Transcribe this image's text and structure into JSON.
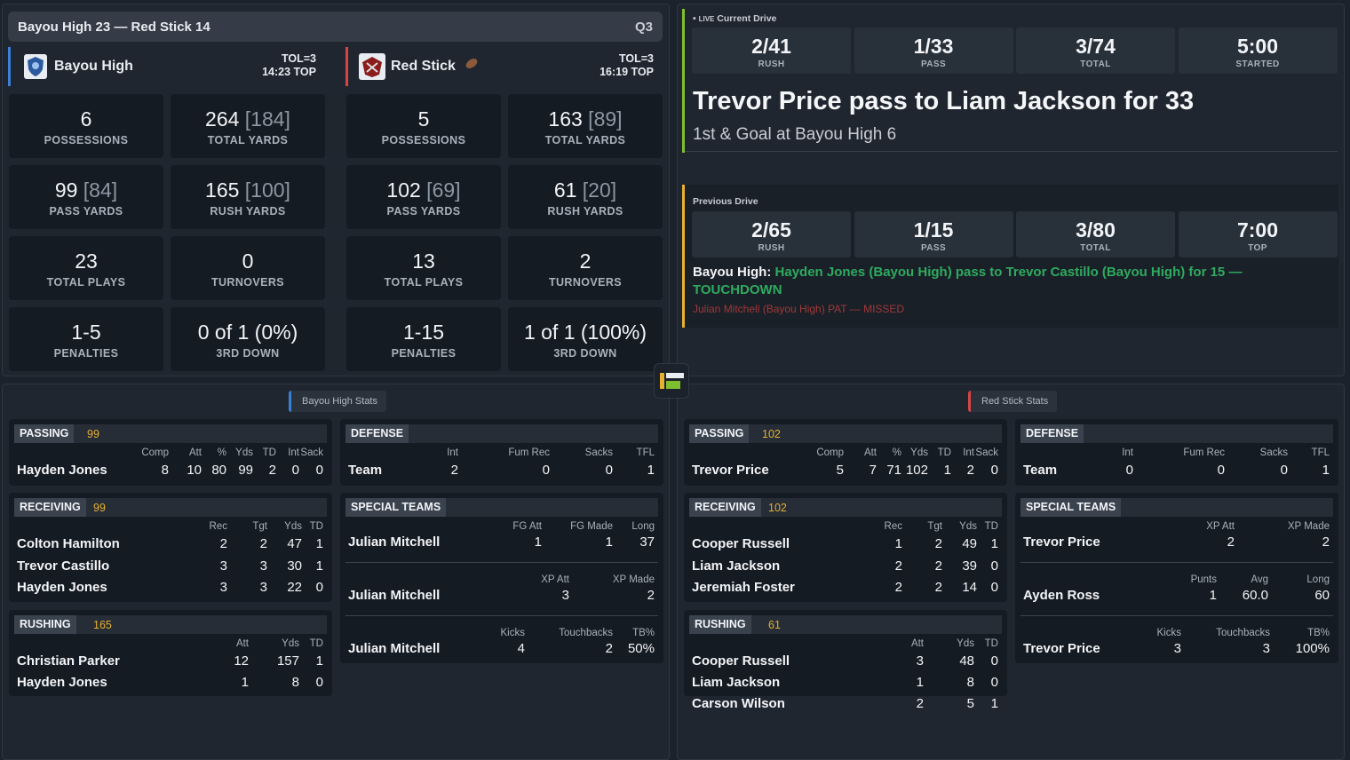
{
  "scorebar": {
    "title": "Bayou High 23 — Red Stick 14",
    "quarter": "Q3"
  },
  "colors": {
    "home": "#3c7fd8",
    "away": "#d64545",
    "gold": "#e6b030",
    "green": "#2eab5f",
    "live": "#7ebf2f"
  },
  "home": {
    "name": "Bayou High",
    "tol": "TOL=3",
    "top": "14:23 TOP",
    "stats": [
      {
        "v": "6",
        "sub": "",
        "l": "POSSESSIONS"
      },
      {
        "v": "264",
        "sub": " [184]",
        "l": "TOTAL YARDS"
      },
      {
        "v": "99",
        "sub": " [84]",
        "l": "PASS YARDS"
      },
      {
        "v": "165",
        "sub": " [100]",
        "l": "RUSH YARDS"
      },
      {
        "v": "23",
        "sub": "",
        "l": "TOTAL PLAYS"
      },
      {
        "v": "0",
        "sub": "",
        "l": "TURNOVERS"
      },
      {
        "v": "1-5",
        "sub": "",
        "l": "PENALTIES"
      },
      {
        "v": "0 of 1 (0%)",
        "sub": "",
        "l": "3RD DOWN"
      }
    ]
  },
  "away": {
    "name": "Red Stick",
    "tol": "TOL=3",
    "top": "16:19 TOP",
    "stats": [
      {
        "v": "5",
        "sub": "",
        "l": "POSSESSIONS"
      },
      {
        "v": "163",
        "sub": " [89]",
        "l": "TOTAL YARDS"
      },
      {
        "v": "102",
        "sub": " [69]",
        "l": "PASS YARDS"
      },
      {
        "v": "61",
        "sub": " [20]",
        "l": "RUSH YARDS"
      },
      {
        "v": "13",
        "sub": "",
        "l": "TOTAL PLAYS"
      },
      {
        "v": "2",
        "sub": "",
        "l": "TURNOVERS"
      },
      {
        "v": "1-15",
        "sub": "",
        "l": "PENALTIES"
      },
      {
        "v": "1 of 1 (100%)",
        "sub": "",
        "l": "3RD DOWN"
      }
    ]
  },
  "current": {
    "live": "LIVE",
    "label": "Current Drive",
    "tiles": [
      {
        "v": "2/41",
        "l": "RUSH"
      },
      {
        "v": "1/33",
        "l": "PASS"
      },
      {
        "v": "3/74",
        "l": "TOTAL"
      },
      {
        "v": "5:00",
        "l": "STARTED"
      }
    ],
    "play": "Trevor Price pass to Liam Jackson for 33",
    "down": "1st & Goal at Bayou High 6"
  },
  "previous": {
    "label": "Previous Drive",
    "tiles": [
      {
        "v": "2/65",
        "l": "RUSH"
      },
      {
        "v": "1/15",
        "l": "PASS"
      },
      {
        "v": "3/80",
        "l": "TOTAL"
      },
      {
        "v": "7:00",
        "l": "TOP"
      }
    ],
    "team": "Bayou High:",
    "play": "Hayden Jones (Bayou High) pass to Trevor Castillo (Bayou High) for 15 — TOUCHDOWN",
    "pat": "Julian Mitchell (Bayou High) PAT — MISSED"
  },
  "home_box": {
    "tab": "Bayou High Stats",
    "passing": {
      "title": "PASSING",
      "total": "99",
      "headers": [
        "Comp",
        "Att",
        "%",
        "Yds",
        "TD",
        "Int",
        "Sack"
      ],
      "rows": [
        {
          "name": "Hayden Jones",
          "vals": [
            "8",
            "10",
            "80",
            "99",
            "2",
            "0",
            "0"
          ]
        }
      ]
    },
    "receiving": {
      "title": "RECEIVING",
      "total": "99",
      "headers": [
        "Rec",
        "Tgt",
        "Yds",
        "TD"
      ],
      "rows": [
        {
          "name": "Colton Hamilton",
          "vals": [
            "2",
            "2",
            "47",
            "1"
          ]
        },
        {
          "name": "Trevor Castillo",
          "vals": [
            "3",
            "3",
            "30",
            "1"
          ]
        },
        {
          "name": "Hayden Jones",
          "vals": [
            "3",
            "3",
            "22",
            "0"
          ]
        }
      ]
    },
    "rushing": {
      "title": "RUSHING",
      "total": "165",
      "headers": [
        "Att",
        "Yds",
        "TD"
      ],
      "rows": [
        {
          "name": "Christian Parker",
          "vals": [
            "12",
            "157",
            "1"
          ]
        },
        {
          "name": "Hayden Jones",
          "vals": [
            "1",
            "8",
            "0"
          ]
        }
      ]
    },
    "defense": {
      "title": "DEFENSE",
      "headers": [
        "Int",
        "Fum Rec",
        "Sacks",
        "TFL"
      ],
      "rows": [
        {
          "name": "Team",
          "vals": [
            "2",
            "0",
            "0",
            "1"
          ]
        }
      ]
    },
    "special": {
      "title": "SPECIAL TEAMS",
      "groups": [
        {
          "headers": [
            "FG Att",
            "FG Made",
            "Long"
          ],
          "name": "Julian Mitchell",
          "vals": [
            "1",
            "1",
            "37"
          ]
        },
        {
          "headers": [
            "XP Att",
            "XP Made"
          ],
          "name": "Julian Mitchell",
          "vals": [
            "3",
            "2"
          ]
        },
        {
          "headers": [
            "Kicks",
            "Touchbacks",
            "TB%"
          ],
          "name": "Julian Mitchell",
          "vals": [
            "4",
            "2",
            "50%"
          ]
        }
      ]
    }
  },
  "away_box": {
    "tab": "Red Stick Stats",
    "passing": {
      "title": "PASSING",
      "total": "102",
      "headers": [
        "Comp",
        "Att",
        "%",
        "Yds",
        "TD",
        "Int",
        "Sack"
      ],
      "rows": [
        {
          "name": "Trevor Price",
          "vals": [
            "5",
            "7",
            "71",
            "102",
            "1",
            "2",
            "0"
          ]
        }
      ]
    },
    "receiving": {
      "title": "RECEIVING",
      "total": "102",
      "headers": [
        "Rec",
        "Tgt",
        "Yds",
        "TD"
      ],
      "rows": [
        {
          "name": "Cooper Russell",
          "vals": [
            "1",
            "2",
            "49",
            "1"
          ]
        },
        {
          "name": "Liam Jackson",
          "vals": [
            "2",
            "2",
            "39",
            "0"
          ]
        },
        {
          "name": "Jeremiah Foster",
          "vals": [
            "2",
            "2",
            "14",
            "0"
          ]
        }
      ]
    },
    "rushing": {
      "title": "RUSHING",
      "total": "61",
      "headers": [
        "Att",
        "Yds",
        "TD"
      ],
      "rows": [
        {
          "name": "Cooper Russell",
          "vals": [
            "3",
            "48",
            "0"
          ]
        },
        {
          "name": "Liam Jackson",
          "vals": [
            "1",
            "8",
            "0"
          ]
        },
        {
          "name": "Carson Wilson",
          "vals": [
            "2",
            "5",
            "1"
          ]
        }
      ]
    },
    "defense": {
      "title": "DEFENSE",
      "headers": [
        "Int",
        "Fum Rec",
        "Sacks",
        "TFL"
      ],
      "rows": [
        {
          "name": "Team",
          "vals": [
            "0",
            "0",
            "0",
            "1"
          ]
        }
      ]
    },
    "special": {
      "title": "SPECIAL TEAMS",
      "groups": [
        {
          "headers": [
            "XP Att",
            "XP Made"
          ],
          "name": "Trevor Price",
          "vals": [
            "2",
            "2"
          ]
        },
        {
          "headers": [
            "Punts",
            "Avg",
            "Long"
          ],
          "name": "Ayden Ross",
          "vals": [
            "1",
            "60.0",
            "60"
          ]
        },
        {
          "headers": [
            "Kicks",
            "Touchbacks",
            "TB%"
          ],
          "name": "Trevor Price",
          "vals": [
            "3",
            "3",
            "100%"
          ]
        }
      ]
    }
  }
}
